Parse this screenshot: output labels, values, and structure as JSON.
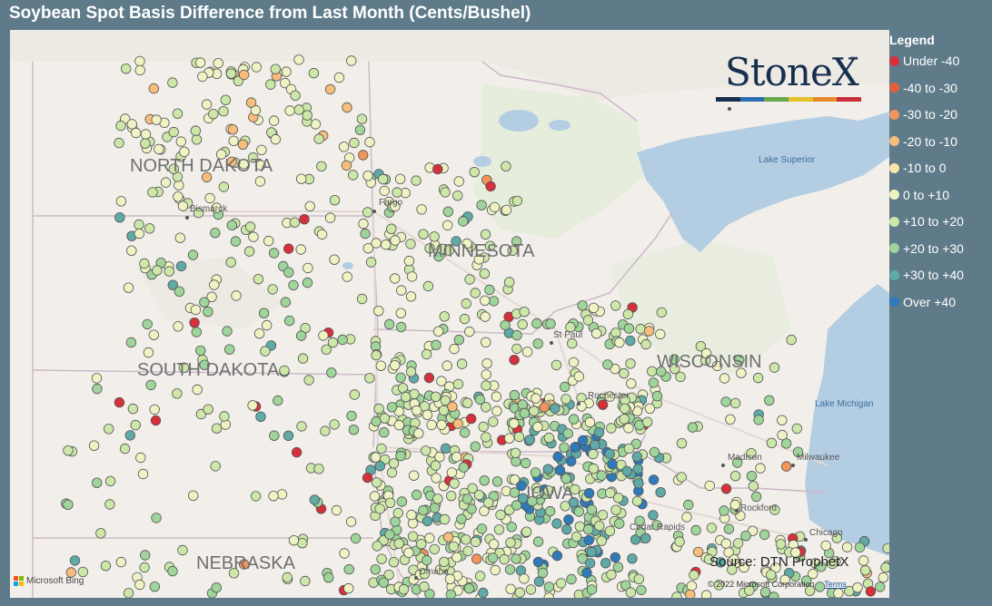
{
  "title": "Soybean Spot Basis Difference from Last Month (Cents/Bushel)",
  "legend": {
    "title": "Legend",
    "items": [
      {
        "label": "Under -40",
        "color": "#d6303a"
      },
      {
        "label": "-40 to -30",
        "color": "#e5603a"
      },
      {
        "label": "-30 to -20",
        "color": "#f0945a"
      },
      {
        "label": "-20 to -10",
        "color": "#f6bd7c"
      },
      {
        "label": "-10 to 0",
        "color": "#fbe6a6"
      },
      {
        "label": "0 to +10",
        "color": "#eff3c4"
      },
      {
        "label": "+10 to +20",
        "color": "#cde7a9"
      },
      {
        "label": "+20 to +30",
        "color": "#9fd49a"
      },
      {
        "label": "+30 to +40",
        "color": "#5fa9a6"
      },
      {
        "label": "Over +40",
        "color": "#2f7ab8"
      }
    ]
  },
  "map": {
    "states": [
      "NORTH DAKOTA",
      "MINNESOTA",
      "SOUTH DAKOTA",
      "WISCONSIN",
      "NEBRASKA",
      "IOWA"
    ],
    "cities": [
      "Bismarck",
      "Fargo",
      "St Paul",
      "Rochester",
      "Madison",
      "Milwaukee",
      "Rockford",
      "Chicago",
      "Cedar Rapids",
      "Omaha"
    ],
    "lakes": [
      "Lake Superior",
      "Lake Michigan"
    ],
    "background_color": "#f2efeb",
    "water_color": "#b3cde3"
  },
  "logo": {
    "text": "StoneX",
    "tm": "™",
    "bar_colors": [
      "#17304f",
      "#2a6db0",
      "#6aa84f",
      "#e4c22b",
      "#e88b2d",
      "#c9303a"
    ]
  },
  "source": "Source: DTN ProphetX",
  "copyright": "© 2022 Microsoft Corporation",
  "terms": "Terms",
  "bing_label": "Microsoft Bing"
}
